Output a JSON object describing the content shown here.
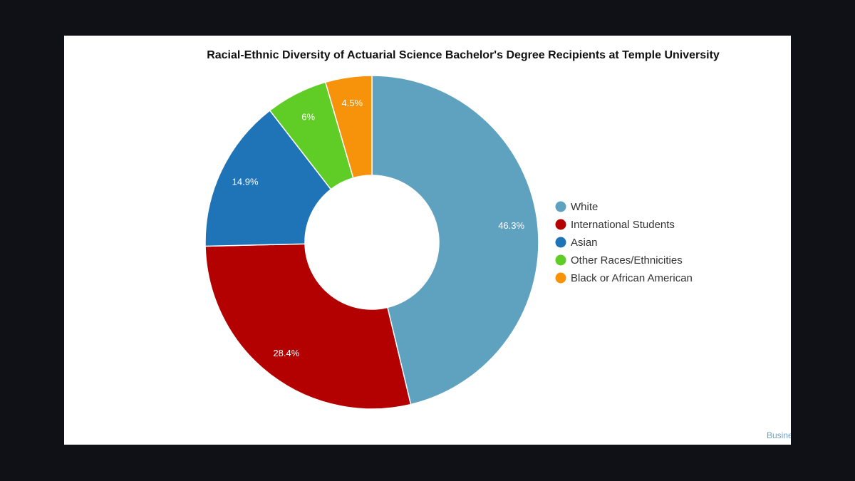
{
  "chart_data": {
    "type": "pie",
    "title": "Racial-Ethnic Diversity of Actuarial Science Bachelor's Degree Recipients at Temple University",
    "donut": true,
    "legend_position": "right",
    "slices": [
      {
        "name": "White",
        "value": 46.3,
        "label": "46.3%",
        "color": "#5fa2c0"
      },
      {
        "name": "International Students",
        "value": 28.4,
        "label": "28.4%",
        "color": "#b30000"
      },
      {
        "name": "Asian",
        "value": 14.9,
        "label": "14.9%",
        "color": "#1f73b7"
      },
      {
        "name": "Other Races/Ethnicities",
        "value": 6,
        "label": "6%",
        "color": "#5fcd26"
      },
      {
        "name": "Black or African American",
        "value": 4.5,
        "label": "4.5%",
        "color": "#f7930a"
      }
    ]
  },
  "credit": "Busine"
}
